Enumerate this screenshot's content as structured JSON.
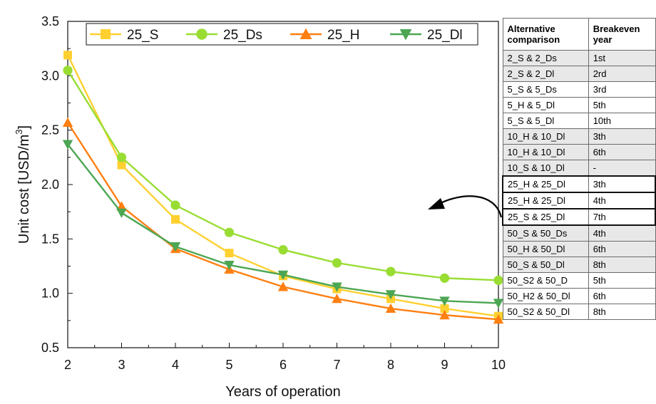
{
  "chart_data": {
    "type": "line",
    "x": [
      2,
      3,
      4,
      5,
      6,
      7,
      8,
      9,
      10
    ],
    "xlabel": "Years of operation",
    "ylabel_main": "Unit cost [USD/m",
    "ylabel_sup": "3",
    "ylabel_end": "]",
    "xlim": [
      2,
      10
    ],
    "ylim": [
      0.5,
      3.5
    ],
    "xticks": [
      "2",
      "3",
      "4",
      "5",
      "6",
      "7",
      "8",
      "9",
      "10"
    ],
    "yticks": [
      "0.5",
      "1.0",
      "1.5",
      "2.0",
      "2.5",
      "3.0",
      "3.5"
    ],
    "legend_position": "top",
    "series": [
      {
        "name": "25_S",
        "color": "#FFD030",
        "marker": "square",
        "values": [
          3.19,
          2.18,
          1.68,
          1.37,
          1.16,
          1.04,
          0.95,
          0.86,
          0.79
        ]
      },
      {
        "name": "25_Ds",
        "color": "#99DD33",
        "marker": "circle",
        "values": [
          3.05,
          2.25,
          1.81,
          1.56,
          1.4,
          1.28,
          1.2,
          1.14,
          1.12
        ]
      },
      {
        "name": "25_H",
        "color": "#FF7F11",
        "marker": "triangle-up",
        "values": [
          2.57,
          1.8,
          1.41,
          1.22,
          1.06,
          0.95,
          0.86,
          0.8,
          0.76
        ]
      },
      {
        "name": "25_Dl",
        "color": "#4CA653",
        "marker": "triangle-down",
        "values": [
          2.37,
          1.74,
          1.43,
          1.26,
          1.17,
          1.06,
          0.99,
          0.93,
          0.91
        ]
      }
    ]
  },
  "table": {
    "headers": [
      "Alternative\ncomparison",
      "Breakeven\nyear"
    ],
    "rows": [
      {
        "comparison": "2_S & 2_Ds",
        "year": "1st",
        "shade": true,
        "highlight": false
      },
      {
        "comparison": "2_S & 2_Dl",
        "year": "2rd",
        "shade": true,
        "highlight": false
      },
      {
        "comparison": "5_S & 5_Ds",
        "year": "3rd",
        "shade": false,
        "highlight": false
      },
      {
        "comparison": "5_H & 5_Dl",
        "year": "5th",
        "shade": false,
        "highlight": false
      },
      {
        "comparison": "5_S & 5_Dl",
        "year": "10th",
        "shade": false,
        "highlight": false
      },
      {
        "comparison": "10_H & 10_Dl",
        "year": "3th",
        "shade": true,
        "highlight": false
      },
      {
        "comparison": "10_H & 10_Dl",
        "year": "6th",
        "shade": true,
        "highlight": false
      },
      {
        "comparison": "10_S & 10_Dl",
        "year": "-",
        "shade": true,
        "highlight": false
      },
      {
        "comparison": "25_H & 25_Dl",
        "year": "3th",
        "shade": false,
        "highlight": true
      },
      {
        "comparison": "25_H & 25_Dl",
        "year": "4th",
        "shade": false,
        "highlight": true
      },
      {
        "comparison": "25_S & 25_Dl",
        "year": "7th",
        "shade": false,
        "highlight": true
      },
      {
        "comparison": "50_S & 50_Ds",
        "year": "4th",
        "shade": true,
        "highlight": false
      },
      {
        "comparison": "50_H & 50_Dl",
        "year": "6th",
        "shade": true,
        "highlight": false
      },
      {
        "comparison": "50_S & 50_Dl",
        "year": "8th",
        "shade": true,
        "highlight": false
      },
      {
        "comparison": "50_S2 & 50_D",
        "year": "5th",
        "shade": false,
        "highlight": false
      },
      {
        "comparison": "50_H2 & 50_Dl",
        "year": "6th",
        "shade": false,
        "highlight": false
      },
      {
        "comparison": "50_S2 & 50_Dl",
        "year": "8th",
        "shade": false,
        "highlight": false
      }
    ]
  },
  "annotation": {
    "arrow_icon": "curved-arrow-icon"
  }
}
